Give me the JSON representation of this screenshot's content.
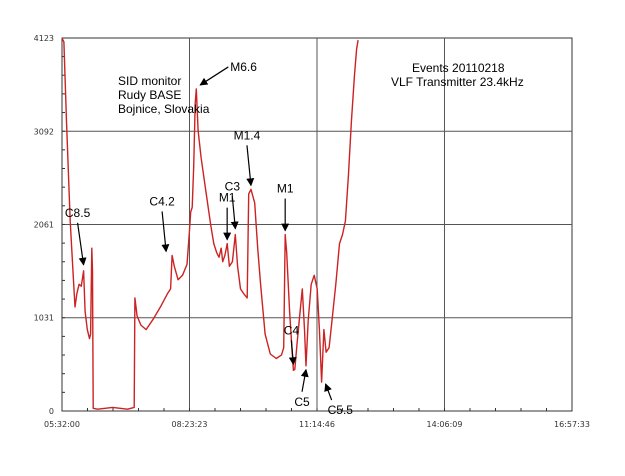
{
  "chart_data": {
    "type": "line",
    "title": "",
    "xlabel": "",
    "ylabel": "",
    "grid": true,
    "line_color": "#cc2222",
    "grid_color": "#555555",
    "x_ticks": [
      "05:32:00",
      "08:23:23",
      "11:14:46",
      "14:06:09",
      "16:57:33"
    ],
    "y_ticks": [
      0,
      1031,
      2061,
      3092,
      4123
    ],
    "ylim": [
      0,
      4123
    ],
    "x_minutes_range": [
      332,
      1017.55
    ],
    "series": [
      {
        "points": [
          [
            "05:32:00",
            4123
          ],
          [
            "05:34:30",
            4080
          ],
          [
            "05:38:00",
            3200
          ],
          [
            "05:43:00",
            2100
          ],
          [
            "05:47:00",
            1500
          ],
          [
            "05:49:30",
            1150
          ],
          [
            "05:52:00",
            1300
          ],
          [
            "05:55:00",
            1400
          ],
          [
            "05:58:00",
            1380
          ],
          [
            "06:01:00",
            1550
          ],
          [
            "06:03:00",
            1100
          ],
          [
            "06:06:00",
            900
          ],
          [
            "06:09:00",
            800
          ],
          [
            "06:10:30",
            850
          ],
          [
            "06:12:00",
            1800
          ],
          [
            "06:13:00",
            1550
          ],
          [
            "06:14:00",
            30
          ],
          [
            "06:20:00",
            20
          ],
          [
            "06:40:00",
            40
          ],
          [
            "07:00:00",
            20
          ],
          [
            "07:09:00",
            40
          ],
          [
            "07:10:00",
            1250
          ],
          [
            "07:13:00",
            1050
          ],
          [
            "07:18:00",
            950
          ],
          [
            "07:25:00",
            900
          ],
          [
            "07:35:00",
            1020
          ],
          [
            "07:45:00",
            1160
          ],
          [
            "07:54:00",
            1300
          ],
          [
            "07:58:00",
            1350
          ],
          [
            "08:00:00",
            1720
          ],
          [
            "08:03:00",
            1600
          ],
          [
            "08:08:00",
            1450
          ],
          [
            "08:14:00",
            1500
          ],
          [
            "08:20:00",
            1620
          ],
          [
            "08:23:00",
            1950
          ],
          [
            "08:25:00",
            2200
          ],
          [
            "08:27:00",
            2250
          ],
          [
            "08:29:00",
            2700
          ],
          [
            "08:31:00",
            3400
          ],
          [
            "08:32:30",
            3560
          ],
          [
            "08:35:00",
            3100
          ],
          [
            "08:39:00",
            2800
          ],
          [
            "08:45:00",
            2450
          ],
          [
            "08:52:00",
            2050
          ],
          [
            "08:56:00",
            1850
          ],
          [
            "09:00:00",
            1750
          ],
          [
            "09:03:00",
            1700
          ],
          [
            "09:06:00",
            1800
          ],
          [
            "09:08:00",
            1650
          ],
          [
            "09:11:00",
            1720
          ],
          [
            "09:14:00",
            1850
          ],
          [
            "09:17:00",
            1600
          ],
          [
            "09:21:00",
            1650
          ],
          [
            "09:25:00",
            1950
          ],
          [
            "09:28:00",
            1600
          ],
          [
            "09:32:00",
            1350
          ],
          [
            "09:36:00",
            1300
          ],
          [
            "09:41:00",
            1250
          ],
          [
            "09:43:00",
            2400
          ],
          [
            "09:46:00",
            2450
          ],
          [
            "09:51:00",
            2300
          ],
          [
            "09:55:00",
            1800
          ],
          [
            "09:59:00",
            1400
          ],
          [
            "10:05:00",
            850
          ],
          [
            "10:12:00",
            630
          ],
          [
            "10:20:00",
            580
          ],
          [
            "10:27:00",
            620
          ],
          [
            "10:30:00",
            700
          ],
          [
            "10:32:00",
            1950
          ],
          [
            "10:34:00",
            1750
          ],
          [
            "10:38:00",
            1100
          ],
          [
            "10:41:00",
            700
          ],
          [
            "10:43:00",
            450
          ],
          [
            "10:45:00",
            460
          ],
          [
            "10:48:00",
            750
          ],
          [
            "10:52:00",
            1100
          ],
          [
            "10:55:00",
            1350
          ],
          [
            "10:58:00",
            900
          ],
          [
            "11:00:00",
            500
          ],
          [
            "11:03:00",
            1000
          ],
          [
            "11:07:00",
            1400
          ],
          [
            "11:11:00",
            1500
          ],
          [
            "11:15:00",
            1350
          ],
          [
            "11:18:00",
            900
          ],
          [
            "11:21:00",
            320
          ],
          [
            "11:24:00",
            900
          ],
          [
            "11:27:00",
            650
          ],
          [
            "11:31:00",
            700
          ],
          [
            "11:35:00",
            1000
          ],
          [
            "11:40:00",
            1400
          ],
          [
            "11:45:00",
            1850
          ],
          [
            "11:49:00",
            1950
          ],
          [
            "11:53:00",
            2100
          ],
          [
            "11:57:00",
            2600
          ],
          [
            "12:01:00",
            3200
          ],
          [
            "12:05:00",
            3700
          ],
          [
            "12:08:00",
            4000
          ],
          [
            "12:10:00",
            4100
          ]
        ]
      }
    ],
    "notes": {
      "site_line1": "SID monitor",
      "site_line2": "Rudy BASE",
      "site_line3": "Bojnice, Slovakia",
      "events_line1": "Events 20110218",
      "events_line2": "VLF Transmitter 23.4kHz"
    },
    "flares": [
      {
        "label": "C8.5",
        "time": "06:01:00",
        "value": 1550
      },
      {
        "label": "C4.2",
        "time": "08:00:00",
        "value": 1720
      },
      {
        "label": "M6.6",
        "time": "08:32:30",
        "value": 3560
      },
      {
        "label": "M1",
        "time": "09:14:00",
        "value": 1850
      },
      {
        "label": "C3",
        "time": "09:25:00",
        "value": 1950
      },
      {
        "label": "M1.4",
        "time": "09:46:00",
        "value": 2450
      },
      {
        "label": "M1",
        "time": "10:32:00",
        "value": 1950
      },
      {
        "label": "C4",
        "time": "10:43:00",
        "value": 450
      },
      {
        "label": "C5",
        "time": "11:00:00",
        "value": 500
      },
      {
        "label": "C5.5",
        "time": "11:21:00",
        "value": 320
      }
    ]
  }
}
